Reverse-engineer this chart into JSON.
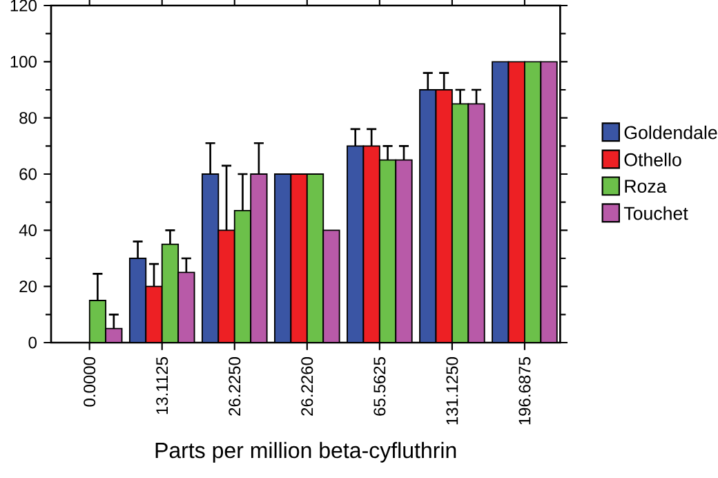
{
  "chart_data": {
    "type": "bar",
    "xlabel": "Parts per million beta-cyfluthrin",
    "categories": [
      "0.0000",
      "13.1125",
      "26.2250",
      "26.2260",
      "65.5625",
      "131.1250",
      "196.6875"
    ],
    "series": [
      {
        "name": "Goldendale",
        "color": "#3a55a4",
        "values": [
          0,
          30,
          60,
          60,
          70,
          90,
          100
        ],
        "errors": [
          null,
          6,
          11,
          null,
          6,
          6,
          null
        ]
      },
      {
        "name": "Othello",
        "color": "#ed2024",
        "values": [
          0,
          20,
          40,
          60,
          70,
          90,
          100
        ],
        "errors": [
          null,
          8,
          23,
          null,
          6,
          6,
          null
        ]
      },
      {
        "name": "Roza",
        "color": "#6cc04a",
        "values": [
          15,
          35,
          47,
          60,
          65,
          85,
          100
        ],
        "errors": [
          9.5,
          5,
          13,
          null,
          5,
          5,
          null
        ]
      },
      {
        "name": "Touchet",
        "color": "#b85aa8",
        "values": [
          5,
          25,
          60,
          40,
          65,
          85,
          100
        ],
        "errors": [
          5,
          5,
          11,
          null,
          5,
          5,
          null
        ]
      }
    ],
    "ylim": [
      0,
      120
    ],
    "yticks": [
      0,
      20,
      40,
      60,
      80,
      100,
      120
    ],
    "legend": "right"
  }
}
